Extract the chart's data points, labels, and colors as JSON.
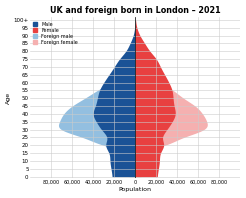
{
  "title": "UK and foreign born in London – 2021",
  "xlabel": "Population",
  "ylabel": "Age",
  "age_labels": [
    "0",
    "5",
    "10",
    "15",
    "20",
    "25",
    "30",
    "35",
    "40",
    "45",
    "50",
    "55",
    "60",
    "65",
    "70",
    "75",
    "80",
    "85",
    "90",
    "95",
    "100+"
  ],
  "age_midpoints": [
    0,
    5,
    10,
    15,
    20,
    25,
    30,
    35,
    40,
    45,
    50,
    55,
    60,
    65,
    70,
    75,
    80,
    85,
    90,
    95,
    100
  ],
  "uk_male": [
    22000,
    23000,
    24000,
    25000,
    28000,
    27000,
    32000,
    37000,
    40000,
    38000,
    36000,
    34000,
    30000,
    25000,
    20000,
    15000,
    9000,
    5000,
    2000,
    600,
    100
  ],
  "uk_female": [
    21000,
    22000,
    23000,
    24000,
    27000,
    26000,
    30000,
    35000,
    38000,
    37000,
    36000,
    35000,
    32000,
    28000,
    24000,
    20000,
    14000,
    9000,
    4500,
    1600,
    400
  ],
  "foreign_male": [
    6000,
    6000,
    6500,
    7000,
    30000,
    50000,
    70000,
    72000,
    68000,
    60000,
    48000,
    36000,
    24000,
    15000,
    9000,
    6000,
    3500,
    1800,
    600,
    150,
    30
  ],
  "foreign_female": [
    5500,
    5500,
    6000,
    6500,
    28000,
    46000,
    65000,
    68000,
    64000,
    57000,
    46000,
    36000,
    25000,
    16000,
    10000,
    7000,
    4500,
    2200,
    800,
    200,
    40
  ],
  "uk_male_color": "#1a5296",
  "uk_female_color": "#e84040",
  "foreign_male_color": "#93bfe0",
  "foreign_female_color": "#f5b0b0",
  "xlim": 100000,
  "xtick_vals": [
    -80000,
    -60000,
    -40000,
    -20000,
    0,
    20000,
    40000,
    60000,
    80000
  ],
  "xtick_labels": [
    "80,000",
    "60,000",
    "40,000",
    "20,000",
    "0",
    "20,000",
    "40,000",
    "60,000",
    "80,000"
  ],
  "background_color": "#ffffff",
  "grid_color": "#cccccc"
}
